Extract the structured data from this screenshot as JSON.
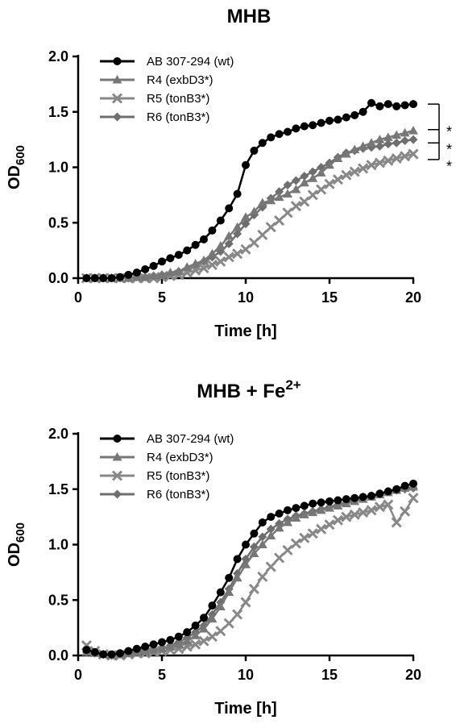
{
  "chart_data": [
    {
      "type": "line",
      "title": "MHB",
      "title_sup": "",
      "xlabel": "Time [h]",
      "ylabel_main": "OD",
      "ylabel_sub": "600",
      "xlim": [
        0,
        20
      ],
      "ylim": [
        0,
        2.0
      ],
      "xticks": [
        0,
        5,
        10,
        15,
        20
      ],
      "xtick_labels": [
        "0",
        "5",
        "10",
        "15",
        "20"
      ],
      "yticks": [
        0,
        0.5,
        1.0,
        1.5,
        2.0
      ],
      "ytick_labels": [
        "0.0",
        "0.5",
        "1.0",
        "1.5",
        "2.0"
      ],
      "legend_position": "top-left",
      "x": [
        0.5,
        1,
        1.5,
        2,
        2.5,
        3,
        3.5,
        4,
        4.5,
        5,
        5.5,
        6,
        6.5,
        7,
        7.5,
        8,
        8.5,
        9,
        9.5,
        10,
        10.5,
        11,
        11.5,
        12,
        12.5,
        13,
        13.5,
        14,
        14.5,
        15,
        15.5,
        16,
        16.5,
        17,
        17.5,
        18,
        18.5,
        19,
        19.5,
        20
      ],
      "series": [
        {
          "name": "AB 307-294 (wt)",
          "color": "#000000",
          "marker": "circle",
          "values": [
            0.0,
            0.0,
            0.0,
            0.0,
            0.01,
            0.03,
            0.05,
            0.08,
            0.11,
            0.15,
            0.18,
            0.21,
            0.25,
            0.3,
            0.35,
            0.43,
            0.52,
            0.63,
            0.76,
            1.02,
            1.15,
            1.22,
            1.27,
            1.3,
            1.32,
            1.35,
            1.37,
            1.38,
            1.4,
            1.42,
            1.43,
            1.45,
            1.47,
            1.5,
            1.58,
            1.55,
            1.57,
            1.55,
            1.56,
            1.57
          ]
        },
        {
          "name": "R4 (exbD3*)",
          "color": "#777777",
          "marker": "triangle",
          "values": [
            0.0,
            0.0,
            0.0,
            0.0,
            0.0,
            0.0,
            0.01,
            0.01,
            0.02,
            0.03,
            0.05,
            0.06,
            0.1,
            0.13,
            0.16,
            0.22,
            0.29,
            0.38,
            0.46,
            0.55,
            0.6,
            0.68,
            0.7,
            0.73,
            0.76,
            0.8,
            0.86,
            0.9,
            0.95,
            1.02,
            1.08,
            1.12,
            1.16,
            1.19,
            1.22,
            1.25,
            1.27,
            1.29,
            1.31,
            1.33
          ]
        },
        {
          "name": "R5 (tonB3*)",
          "color": "#888888",
          "marker": "x",
          "values": [
            0.0,
            0.0,
            0.0,
            0.0,
            0.0,
            0.0,
            0.0,
            0.0,
            0.0,
            0.01,
            0.02,
            0.03,
            0.05,
            0.07,
            0.09,
            0.12,
            0.15,
            0.19,
            0.22,
            0.26,
            0.32,
            0.39,
            0.46,
            0.52,
            0.59,
            0.65,
            0.69,
            0.75,
            0.8,
            0.85,
            0.89,
            0.93,
            0.96,
            0.99,
            1.02,
            1.04,
            1.06,
            1.08,
            1.1,
            1.12
          ]
        },
        {
          "name": "R6 (tonB3*)",
          "color": "#6e6e6e",
          "marker": "diamond",
          "values": [
            0.0,
            0.0,
            0.0,
            0.0,
            0.0,
            0.0,
            0.01,
            0.01,
            0.02,
            0.03,
            0.04,
            0.06,
            0.08,
            0.11,
            0.15,
            0.19,
            0.24,
            0.31,
            0.4,
            0.49,
            0.57,
            0.64,
            0.72,
            0.78,
            0.84,
            0.88,
            0.92,
            0.96,
            1.0,
            1.04,
            1.09,
            1.13,
            1.15,
            1.17,
            1.18,
            1.19,
            1.21,
            1.22,
            1.24,
            1.25
          ]
        }
      ],
      "significance": [
        "*",
        "*",
        "*"
      ]
    },
    {
      "type": "line",
      "title": "MHB + Fe",
      "title_sup": "2+",
      "xlabel": "Time [h]",
      "ylabel_main": "OD",
      "ylabel_sub": "600",
      "xlim": [
        0,
        20
      ],
      "ylim": [
        0,
        2.0
      ],
      "xticks": [
        0,
        5,
        10,
        15,
        20
      ],
      "xtick_labels": [
        "0",
        "5",
        "10",
        "15",
        "20"
      ],
      "yticks": [
        0,
        0.5,
        1.0,
        1.5,
        2.0
      ],
      "ytick_labels": [
        "0.0",
        "0.5",
        "1.0",
        "1.5",
        "2.0"
      ],
      "legend_position": "top-left",
      "x": [
        0.5,
        1,
        1.5,
        2,
        2.5,
        3,
        3.5,
        4,
        4.5,
        5,
        5.5,
        6,
        6.5,
        7,
        7.5,
        8,
        8.5,
        9,
        9.5,
        10,
        10.5,
        11,
        11.5,
        12,
        12.5,
        13,
        13.5,
        14,
        14.5,
        15,
        15.5,
        16,
        16.5,
        17,
        17.5,
        18,
        18.5,
        19,
        19.5,
        20
      ],
      "series": [
        {
          "name": "AB 307-294 (wt)",
          "color": "#000000",
          "marker": "circle",
          "values": [
            0.05,
            0.03,
            0.01,
            0.01,
            0.02,
            0.04,
            0.06,
            0.08,
            0.1,
            0.12,
            0.14,
            0.17,
            0.21,
            0.27,
            0.34,
            0.45,
            0.57,
            0.7,
            0.87,
            1.0,
            1.1,
            1.2,
            1.25,
            1.28,
            1.31,
            1.33,
            1.35,
            1.37,
            1.38,
            1.39,
            1.4,
            1.41,
            1.42,
            1.43,
            1.44,
            1.46,
            1.48,
            1.5,
            1.53,
            1.55
          ]
        },
        {
          "name": "R4 (exbD3*)",
          "color": "#777777",
          "marker": "triangle",
          "values": [
            0.03,
            0.02,
            0.01,
            0.0,
            0.01,
            0.02,
            0.03,
            0.04,
            0.05,
            0.06,
            0.08,
            0.1,
            0.13,
            0.18,
            0.24,
            0.33,
            0.44,
            0.57,
            0.7,
            0.82,
            0.92,
            1.0,
            1.08,
            1.15,
            1.2,
            1.24,
            1.27,
            1.29,
            1.31,
            1.33,
            1.35,
            1.37,
            1.39,
            1.41,
            1.43,
            1.45,
            1.47,
            1.49,
            1.51,
            1.52
          ]
        },
        {
          "name": "R5 (tonB3*)",
          "color": "#888888",
          "marker": "x",
          "values": [
            0.09,
            0.04,
            0.01,
            0.0,
            0.0,
            0.01,
            0.02,
            0.02,
            0.03,
            0.04,
            0.05,
            0.06,
            0.08,
            0.1,
            0.13,
            0.17,
            0.22,
            0.29,
            0.37,
            0.48,
            0.6,
            0.71,
            0.8,
            0.88,
            0.95,
            1.01,
            1.06,
            1.1,
            1.14,
            1.18,
            1.22,
            1.25,
            1.27,
            1.29,
            1.31,
            1.34,
            1.36,
            1.2,
            1.3,
            1.42
          ]
        },
        {
          "name": "R6 (tonB3*)",
          "color": "#6e6e6e",
          "marker": "diamond",
          "values": [
            0.03,
            0.02,
            0.01,
            0.0,
            0.01,
            0.02,
            0.03,
            0.04,
            0.05,
            0.07,
            0.09,
            0.12,
            0.16,
            0.21,
            0.27,
            0.37,
            0.48,
            0.6,
            0.74,
            0.87,
            0.98,
            1.07,
            1.14,
            1.19,
            1.23,
            1.26,
            1.28,
            1.3,
            1.32,
            1.34,
            1.36,
            1.38,
            1.4,
            1.42,
            1.44,
            1.46,
            1.48,
            1.49,
            1.5,
            1.51
          ]
        }
      ],
      "significance": []
    }
  ]
}
